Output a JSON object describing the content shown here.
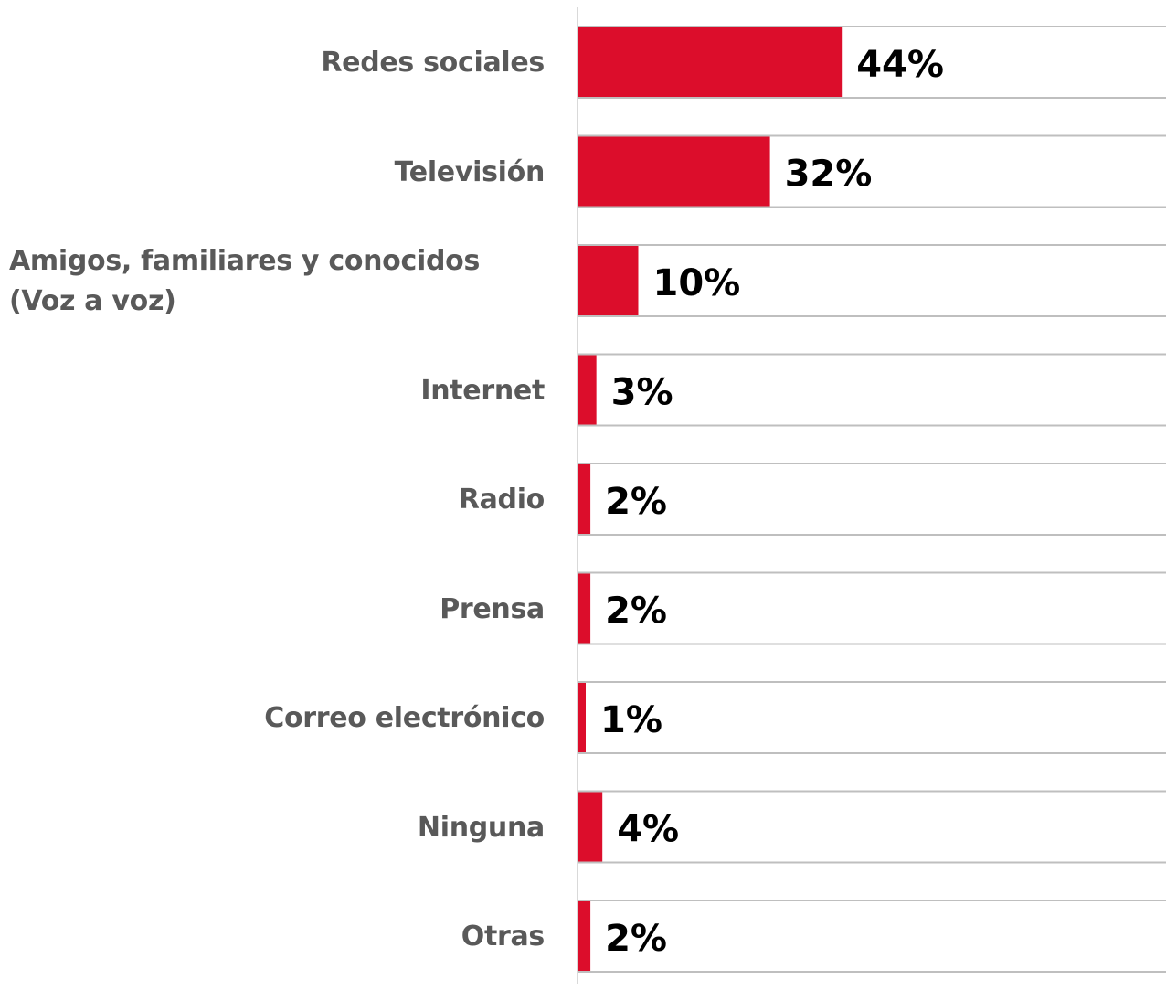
{
  "chart_data": {
    "type": "bar",
    "orientation": "horizontal",
    "categories": [
      "Redes sociales",
      "Televisión",
      "Amigos, familiares y conocidos (Voz a voz)",
      "Internet",
      "Radio",
      "Prensa",
      "Correo electrónico",
      "Ninguna",
      "Otras"
    ],
    "values": [
      44,
      32,
      10,
      3,
      2,
      2,
      1,
      4,
      2
    ],
    "value_labels": [
      "44%",
      "32%",
      "10%",
      "3%",
      "2%",
      "2%",
      "1%",
      "4%",
      "2%"
    ],
    "title": "",
    "xlabel": "",
    "ylabel": "",
    "xlim": [
      0,
      100
    ],
    "grid": true,
    "legend": "none",
    "colors": {
      "bar": "#DC0D2B",
      "category_text": "#595959",
      "value_text": "#000000",
      "gridline": "#BFBFBF",
      "axis": "#D9D9D9"
    }
  }
}
